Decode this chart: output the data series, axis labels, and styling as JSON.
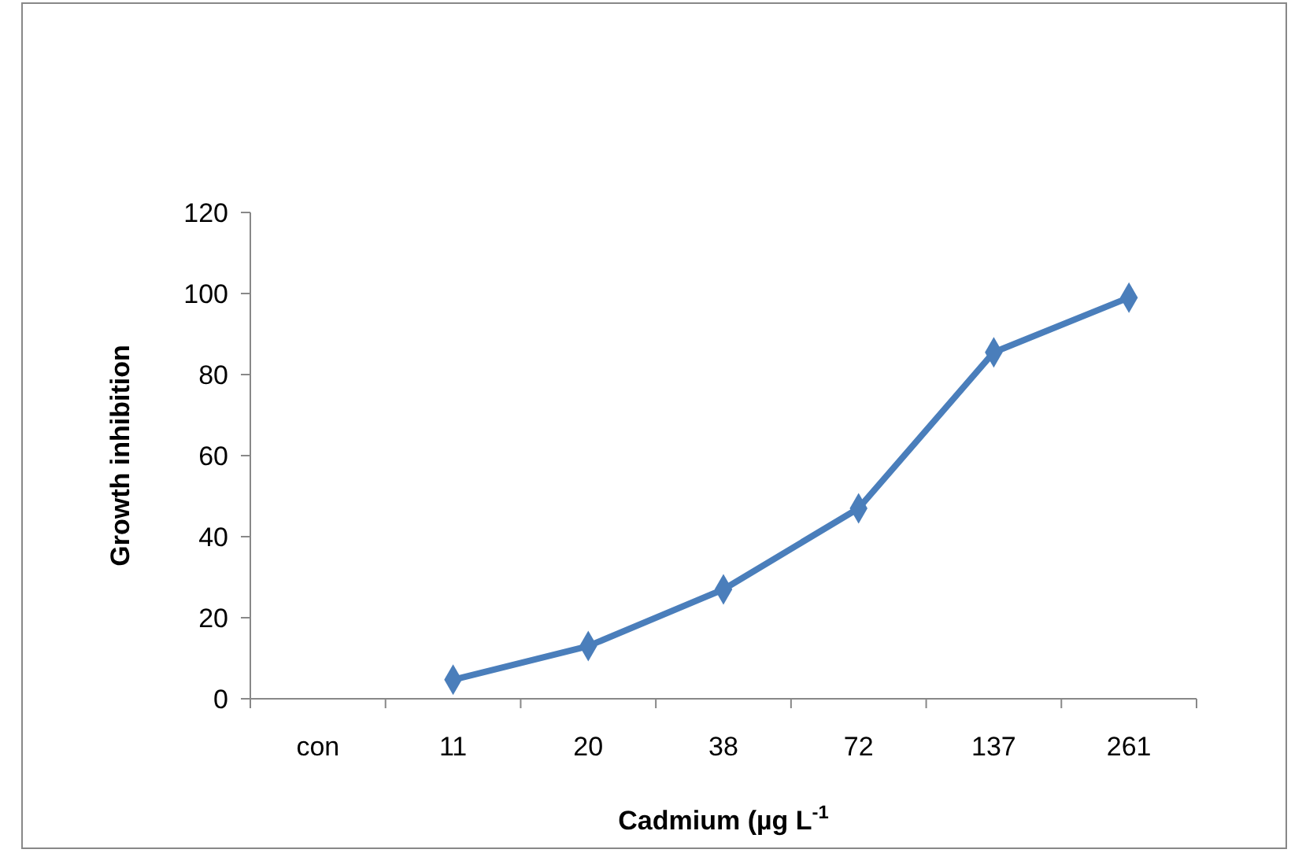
{
  "chart_data": {
    "type": "line",
    "xlabel": "Cadmium (µg L$^{-1}$",
    "ylabel": "Growth inhibition",
    "categories": [
      "con",
      "11",
      "20",
      "38",
      "72",
      "137",
      "261"
    ],
    "series": [
      {
        "color": "#4a7ebb",
        "values": [
          null,
          4.7,
          13,
          27,
          47,
          85.5,
          99
        ]
      }
    ],
    "ylim": [
      0,
      120
    ],
    "yticks": [
      0,
      20,
      40,
      60,
      80,
      100,
      120
    ],
    "grid": false,
    "marker": "diamond",
    "line_style": "solid"
  }
}
